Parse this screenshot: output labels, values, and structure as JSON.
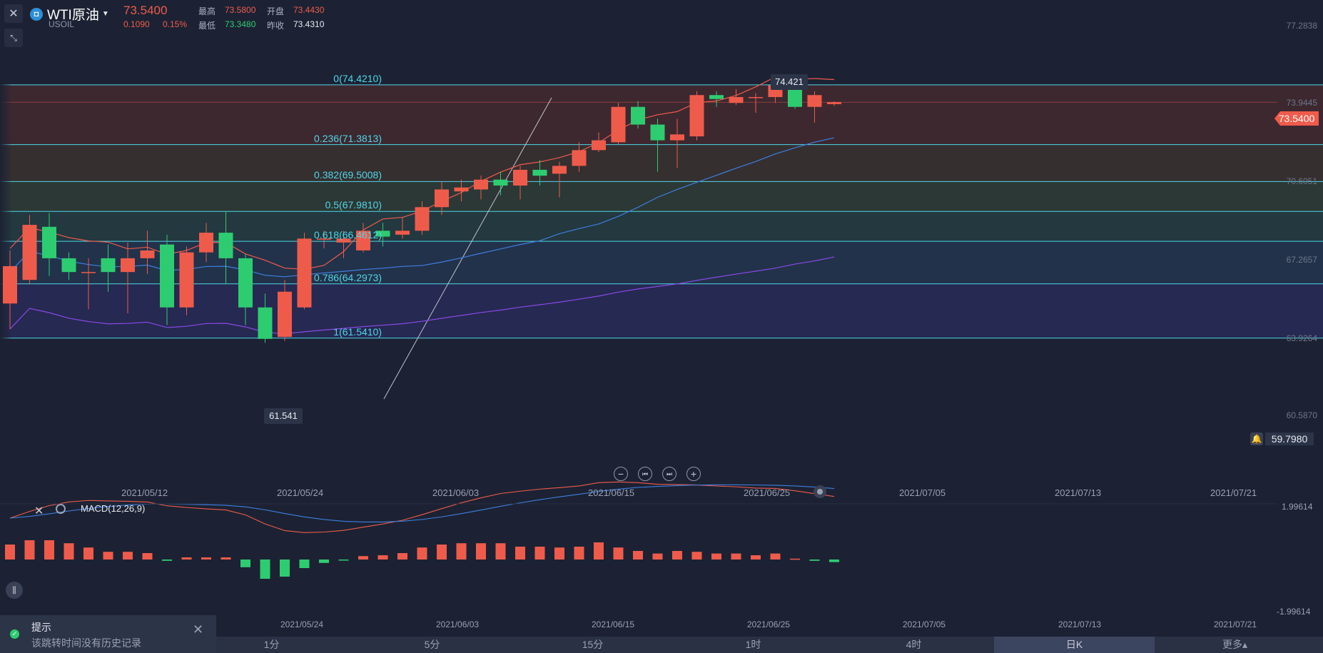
{
  "header": {
    "symbol_name": "WTI原油",
    "symbol_code": "USOIL",
    "last_price": "73.5400",
    "change": "0.1090",
    "change_pct": "0.15%",
    "high_label": "最高",
    "high_value": "73.5800",
    "open_label": "开盘",
    "open_value": "73.4430",
    "low_label": "最低",
    "low_value": "73.3480",
    "prev_close_label": "昨收",
    "prev_close_value": "73.4310"
  },
  "main_chart": {
    "price_axis_labels": [
      "77.2838",
      "73.9445",
      "70.6051",
      "67.2657",
      "63.9264",
      "60.5870"
    ],
    "current_price_tag": "73.5400",
    "alert_price_tag": "59.7980",
    "high_marker": "74.421",
    "low_marker": "61.541",
    "fib_labels": [
      "0(74.4210)",
      "0.236(71.3813)",
      "0.382(69.5008)",
      "0.5(67.9810)",
      "0.618(66.4612)",
      "0.786(64.2973)",
      "1(61.5410)"
    ],
    "date_labels": [
      "2021/05/12",
      "2021/05/24",
      "2021/06/03",
      "2021/06/15",
      "2021/06/25",
      "2021/07/05",
      "2021/07/13",
      "2021/07/21"
    ]
  },
  "macd": {
    "title": "MACD(12,26,9)",
    "axis_top": "1.99614",
    "axis_bottom": "-1.99614",
    "date_labels": [
      "2021/05/24",
      "2021/06/03",
      "2021/06/15",
      "2021/06/25",
      "2021/07/05",
      "2021/07/13",
      "2021/07/21"
    ]
  },
  "timeframes": [
    "1分",
    "5分",
    "15分",
    "1时",
    "4时",
    "日K",
    "更多▴"
  ],
  "active_timeframe": "日K",
  "toast": {
    "title": "提示",
    "message": "该跳转时间没有历史记录"
  },
  "colors": {
    "up": "#ef5b4b",
    "down": "#2ecc71",
    "fib": "#4fd6e8",
    "bg": "#1c2233"
  },
  "chart_data": [
    {
      "type": "candlestick",
      "title": "",
      "ylim": [
        59.0,
        78.5
      ],
      "candles": [
        {
          "o": 63.3,
          "c": 65.2,
          "h": 66.0,
          "l": 62.0
        },
        {
          "o": 64.5,
          "c": 67.3,
          "h": 67.8,
          "l": 64.3
        },
        {
          "o": 67.2,
          "c": 65.6,
          "h": 67.9,
          "l": 64.7
        },
        {
          "o": 65.6,
          "c": 64.9,
          "h": 65.9,
          "l": 64.5
        },
        {
          "o": 64.9,
          "c": 64.9,
          "h": 65.6,
          "l": 63.0
        },
        {
          "o": 65.6,
          "c": 64.9,
          "h": 66.3,
          "l": 63.9
        },
        {
          "o": 64.9,
          "c": 65.6,
          "h": 66.4,
          "l": 62.8
        },
        {
          "o": 65.6,
          "c": 66.0,
          "h": 67.0,
          "l": 64.8
        },
        {
          "o": 66.3,
          "c": 63.1,
          "h": 66.8,
          "l": 62.2
        },
        {
          "o": 63.1,
          "c": 65.9,
          "h": 66.2,
          "l": 62.7
        },
        {
          "o": 65.9,
          "c": 66.9,
          "h": 67.4,
          "l": 65.4
        },
        {
          "o": 66.9,
          "c": 65.6,
          "h": 68.0,
          "l": 64.3
        },
        {
          "o": 65.6,
          "c": 63.1,
          "h": 65.8,
          "l": 62.2
        },
        {
          "o": 63.1,
          "c": 61.5,
          "h": 63.8,
          "l": 61.3
        },
        {
          "o": 61.6,
          "c": 63.9,
          "h": 64.5,
          "l": 61.4
        },
        {
          "o": 63.1,
          "c": 66.6,
          "h": 66.9,
          "l": 63.0
        },
        {
          "o": 66.6,
          "c": 66.6,
          "h": 67.0,
          "l": 66.1
        },
        {
          "o": 66.4,
          "c": 66.6,
          "h": 67.0,
          "l": 65.6
        },
        {
          "o": 66.0,
          "c": 67.0,
          "h": 67.4,
          "l": 65.9
        },
        {
          "o": 67.0,
          "c": 66.7,
          "h": 67.4,
          "l": 66.2
        },
        {
          "o": 66.8,
          "c": 67.0,
          "h": 67.7,
          "l": 66.6
        },
        {
          "o": 67.0,
          "c": 68.2,
          "h": 68.5,
          "l": 66.8
        },
        {
          "o": 68.2,
          "c": 69.1,
          "h": 69.5,
          "l": 67.8
        },
        {
          "o": 69.0,
          "c": 69.2,
          "h": 69.6,
          "l": 68.5
        },
        {
          "o": 69.1,
          "c": 69.6,
          "h": 69.8,
          "l": 68.6
        },
        {
          "o": 69.6,
          "c": 69.3,
          "h": 70.0,
          "l": 68.8
        },
        {
          "o": 69.3,
          "c": 70.1,
          "h": 70.3,
          "l": 68.6
        },
        {
          "o": 70.1,
          "c": 69.8,
          "h": 70.6,
          "l": 69.3
        },
        {
          "o": 69.9,
          "c": 70.3,
          "h": 70.5,
          "l": 68.7
        },
        {
          "o": 70.3,
          "c": 71.1,
          "h": 71.5,
          "l": 70.0
        },
        {
          "o": 71.1,
          "c": 71.6,
          "h": 72.0,
          "l": 71.0
        },
        {
          "o": 71.5,
          "c": 73.3,
          "h": 73.5,
          "l": 71.4
        },
        {
          "o": 73.3,
          "c": 72.4,
          "h": 73.6,
          "l": 72.2
        },
        {
          "o": 72.4,
          "c": 71.6,
          "h": 72.7,
          "l": 70.0
        },
        {
          "o": 71.6,
          "c": 71.9,
          "h": 72.7,
          "l": 70.2
        },
        {
          "o": 71.8,
          "c": 73.9,
          "h": 74.1,
          "l": 71.6
        },
        {
          "o": 73.9,
          "c": 73.7,
          "h": 74.1,
          "l": 73.3
        },
        {
          "o": 73.5,
          "c": 73.8,
          "h": 74.2,
          "l": 73.4
        },
        {
          "o": 73.8,
          "c": 73.8,
          "h": 74.0,
          "l": 73.0
        },
        {
          "o": 73.8,
          "c": 74.4,
          "h": 74.4,
          "l": 73.5
        },
        {
          "o": 74.4,
          "c": 73.3,
          "h": 74.42,
          "l": 73.2
        },
        {
          "o": 73.3,
          "c": 73.9,
          "h": 74.1,
          "l": 72.5
        },
        {
          "o": 73.44,
          "c": 73.54,
          "h": 73.58,
          "l": 73.35
        }
      ],
      "fib_levels": [
        {
          "ratio": 0,
          "price": 74.421
        },
        {
          "ratio": 0.236,
          "price": 71.3813
        },
        {
          "ratio": 0.382,
          "price": 69.5008
        },
        {
          "ratio": 0.5,
          "price": 67.981
        },
        {
          "ratio": 0.618,
          "price": 66.4612
        },
        {
          "ratio": 0.786,
          "price": 64.2973
        },
        {
          "ratio": 1,
          "price": 61.541
        }
      ]
    },
    {
      "type": "bar",
      "title": "MACD(12,26,9)",
      "ylim": [
        -1.99614,
        1.99614
      ],
      "values": [
        0.35,
        0.45,
        0.45,
        0.38,
        0.28,
        0.18,
        0.18,
        0.15,
        -0.03,
        0.05,
        0.05,
        0.05,
        -0.18,
        -0.45,
        -0.4,
        -0.2,
        -0.08,
        -0.02,
        0.08,
        0.1,
        0.15,
        0.28,
        0.35,
        0.38,
        0.38,
        0.38,
        0.3,
        0.3,
        0.28,
        0.3,
        0.4,
        0.28,
        0.2,
        0.14,
        0.2,
        0.18,
        0.14,
        0.14,
        0.1,
        0.14,
        0.02,
        -0.03,
        -0.06
      ]
    }
  ]
}
